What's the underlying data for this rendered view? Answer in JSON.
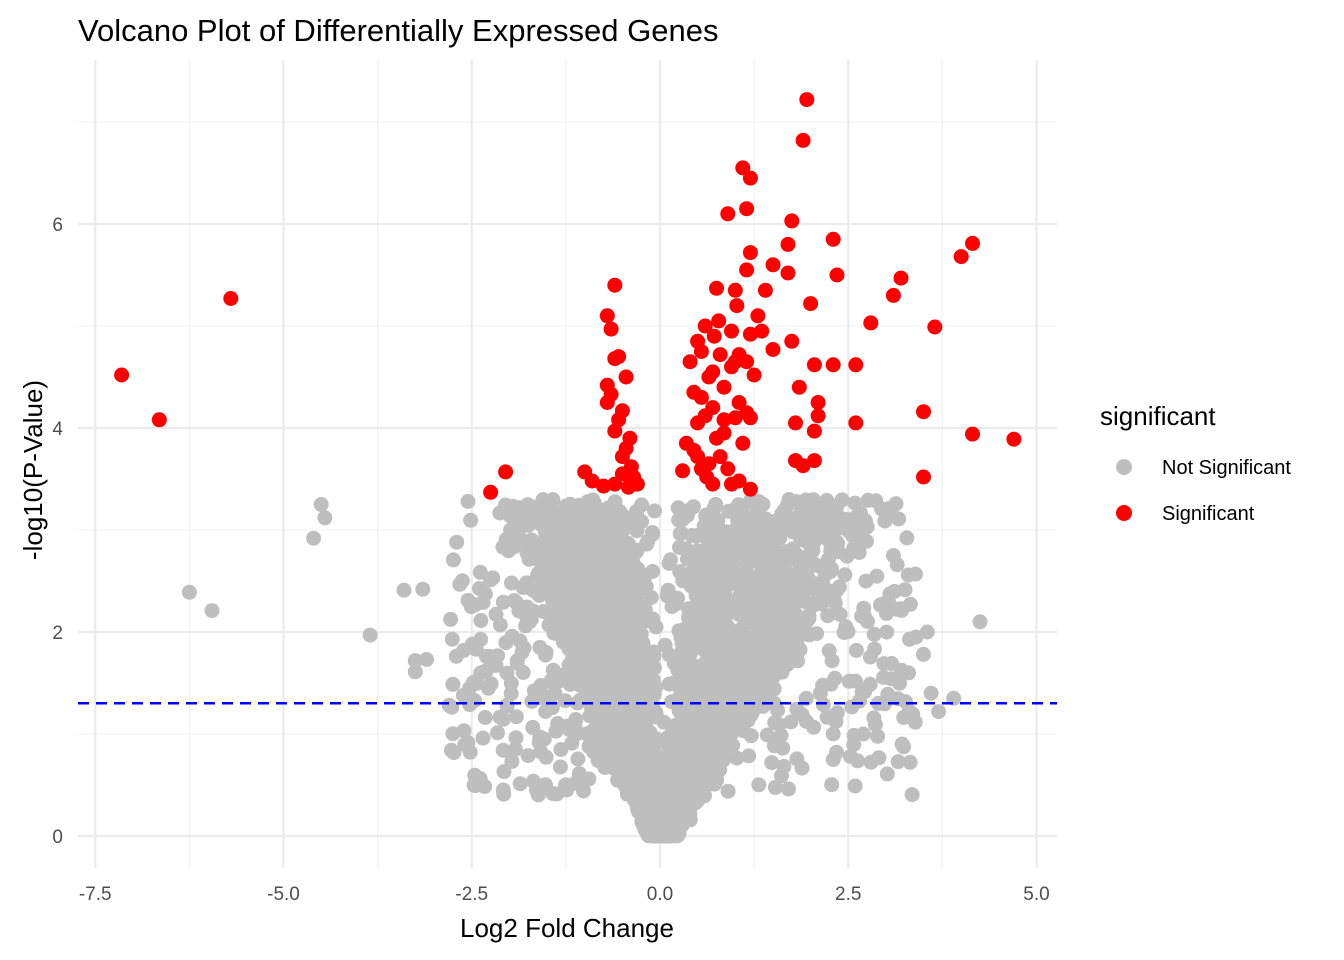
{
  "chart_data": {
    "type": "scatter",
    "title": "Volcano Plot of Differentially Expressed Genes",
    "xlabel": "Log2 Fold Change",
    "ylabel": "-log10(P-Value)",
    "xlim": [
      -7.6,
      5.2
    ],
    "ylim": [
      -0.3,
      7.5
    ],
    "x_ticks": [
      -7.5,
      -5.0,
      -2.5,
      0.0,
      2.5,
      5.0
    ],
    "x_tick_labels": [
      "-7.5",
      "-5.0",
      "-2.5",
      "0.0",
      "2.5",
      "5.0"
    ],
    "y_ticks": [
      0,
      2,
      4,
      6
    ],
    "y_tick_labels": [
      "0",
      "2",
      "4",
      "6"
    ],
    "grid": true,
    "threshold_line": {
      "y": 1.301,
      "color": "#0000ff",
      "style": "dashed"
    },
    "legend": {
      "title": "significant",
      "position": "right",
      "entries": [
        {
          "label": "Not Significant",
          "color": "#bebebe"
        },
        {
          "label": "Significant",
          "color": "#ff0000"
        }
      ]
    },
    "series": [
      {
        "name": "Significant",
        "color": "#ff0000",
        "points": [
          [
            -7.15,
            4.52
          ],
          [
            -6.65,
            4.08
          ],
          [
            -5.7,
            5.27
          ],
          [
            -2.25,
            3.37
          ],
          [
            -2.05,
            3.57
          ],
          [
            -1.0,
            3.57
          ],
          [
            -0.9,
            3.48
          ],
          [
            -0.7,
            5.1
          ],
          [
            -0.65,
            4.97
          ],
          [
            -0.6,
            5.4
          ],
          [
            -0.55,
            4.7
          ],
          [
            -0.6,
            4.68
          ],
          [
            -0.45,
            4.5
          ],
          [
            -0.7,
            4.42
          ],
          [
            -0.65,
            4.33
          ],
          [
            -0.7,
            4.25
          ],
          [
            -0.5,
            4.17
          ],
          [
            -0.55,
            4.08
          ],
          [
            -0.6,
            3.97
          ],
          [
            -0.4,
            3.9
          ],
          [
            -0.45,
            3.8
          ],
          [
            -0.5,
            3.72
          ],
          [
            -0.38,
            3.62
          ],
          [
            -0.5,
            3.55
          ],
          [
            -0.35,
            3.52
          ],
          [
            -0.6,
            3.45
          ],
          [
            -0.42,
            3.42
          ],
          [
            -0.75,
            3.43
          ],
          [
            -0.3,
            3.45
          ],
          [
            0.3,
            3.58
          ],
          [
            0.35,
            3.85
          ],
          [
            0.45,
            3.78
          ],
          [
            0.5,
            3.72
          ],
          [
            0.55,
            3.6
          ],
          [
            0.62,
            3.52
          ],
          [
            0.7,
            3.45
          ],
          [
            0.65,
            3.65
          ],
          [
            0.8,
            3.72
          ],
          [
            0.9,
            3.6
          ],
          [
            0.95,
            3.45
          ],
          [
            1.05,
            3.48
          ],
          [
            1.1,
            3.85
          ],
          [
            1.2,
            3.4
          ],
          [
            0.85,
            3.95
          ],
          [
            0.75,
            3.9
          ],
          [
            0.5,
            4.05
          ],
          [
            0.6,
            4.12
          ],
          [
            0.7,
            4.2
          ],
          [
            0.85,
            4.08
          ],
          [
            1.0,
            4.1
          ],
          [
            1.15,
            4.15
          ],
          [
            1.2,
            4.1
          ],
          [
            1.05,
            4.25
          ],
          [
            0.55,
            4.3
          ],
          [
            0.45,
            4.35
          ],
          [
            0.65,
            4.5
          ],
          [
            0.7,
            4.55
          ],
          [
            0.85,
            4.4
          ],
          [
            0.95,
            4.6
          ],
          [
            1.0,
            4.65
          ],
          [
            0.4,
            4.65
          ],
          [
            0.55,
            4.75
          ],
          [
            0.8,
            4.72
          ],
          [
            1.05,
            4.72
          ],
          [
            1.25,
            4.52
          ],
          [
            1.15,
            4.65
          ],
          [
            0.5,
            4.85
          ],
          [
            0.72,
            4.9
          ],
          [
            0.95,
            4.95
          ],
          [
            1.2,
            4.92
          ],
          [
            1.35,
            4.95
          ],
          [
            0.6,
            5.0
          ],
          [
            0.78,
            5.05
          ],
          [
            1.02,
            5.2
          ],
          [
            1.3,
            5.1
          ],
          [
            0.75,
            5.37
          ],
          [
            1.0,
            5.35
          ],
          [
            1.4,
            5.35
          ],
          [
            1.15,
            5.55
          ],
          [
            1.2,
            5.72
          ],
          [
            1.5,
            5.6
          ],
          [
            1.7,
            5.52
          ],
          [
            1.7,
            5.8
          ],
          [
            0.9,
            6.1
          ],
          [
            1.15,
            6.15
          ],
          [
            1.75,
            6.03
          ],
          [
            1.1,
            6.55
          ],
          [
            1.2,
            6.45
          ],
          [
            1.9,
            6.82
          ],
          [
            1.95,
            7.22
          ],
          [
            2.3,
            5.85
          ],
          [
            2.35,
            5.5
          ],
          [
            2.0,
            5.22
          ],
          [
            1.5,
            4.77
          ],
          [
            1.75,
            4.85
          ],
          [
            1.85,
            4.4
          ],
          [
            2.05,
            4.62
          ],
          [
            2.1,
            4.25
          ],
          [
            2.1,
            4.12
          ],
          [
            2.3,
            4.62
          ],
          [
            1.8,
            4.05
          ],
          [
            2.05,
            3.97
          ],
          [
            1.8,
            3.68
          ],
          [
            1.9,
            3.63
          ],
          [
            2.05,
            3.68
          ],
          [
            2.6,
            4.62
          ],
          [
            2.6,
            4.05
          ],
          [
            2.8,
            5.03
          ],
          [
            3.1,
            5.3
          ],
          [
            3.2,
            5.47
          ],
          [
            3.65,
            4.99
          ],
          [
            3.5,
            4.16
          ],
          [
            3.5,
            3.52
          ],
          [
            4.0,
            5.68
          ],
          [
            4.15,
            5.81
          ],
          [
            4.15,
            3.94
          ],
          [
            4.7,
            3.89
          ]
        ]
      }
    ]
  }
}
